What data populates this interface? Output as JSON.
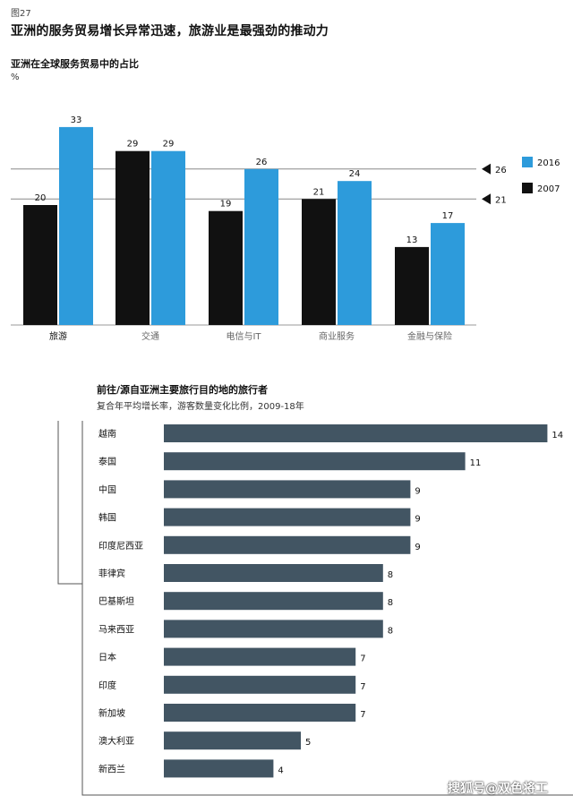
{
  "figure_label": "图27",
  "title": "亚洲的服务贸易增长异常迅速，旅游业是最强劲的推动力",
  "panel1": {
    "subtitle": "亚洲在全球服务贸易中的占比",
    "unit": "%"
  },
  "panel2": {
    "title": "前往/源自亚洲主要旅行目的地的旅行者",
    "subtitle": "复合年平均增长率，游客数量变化比例，2009-18年"
  },
  "watermark": "搜狐号@双色将工",
  "colors": {
    "series_2007": "#111111",
    "series_2016": "#2d9bdb",
    "bar2": "#425563",
    "refline": "#888888"
  },
  "chart_data": [
    {
      "type": "bar",
      "title": "亚洲在全球服务贸易中的占比",
      "ylabel": "%",
      "categories": [
        "旅游",
        "交通",
        "电信与IT",
        "商业服务",
        "金融与保险"
      ],
      "series": [
        {
          "name": "2007",
          "values": [
            20,
            29,
            19,
            21,
            13
          ]
        },
        {
          "name": "2016",
          "values": [
            33,
            29,
            26,
            24,
            17
          ]
        }
      ],
      "reference_lines": [
        {
          "value": 26,
          "label": "26"
        },
        {
          "value": 21,
          "label": "21"
        }
      ],
      "legend": "right",
      "ylim": [
        0,
        35
      ]
    },
    {
      "type": "bar",
      "orientation": "horizontal",
      "title": "前往/源自亚洲主要旅行目的地的旅行者",
      "categories": [
        "越南",
        "泰国",
        "中国",
        "韩国",
        "印度尼西亚",
        "菲律宾",
        "巴基斯坦",
        "马来西亚",
        "日本",
        "印度",
        "新加坡",
        "澳大利亚",
        "新西兰"
      ],
      "values": [
        14,
        11,
        9,
        9,
        9,
        8,
        8,
        8,
        7,
        7,
        7,
        5,
        4
      ],
      "xlim": [
        0,
        14
      ]
    }
  ]
}
